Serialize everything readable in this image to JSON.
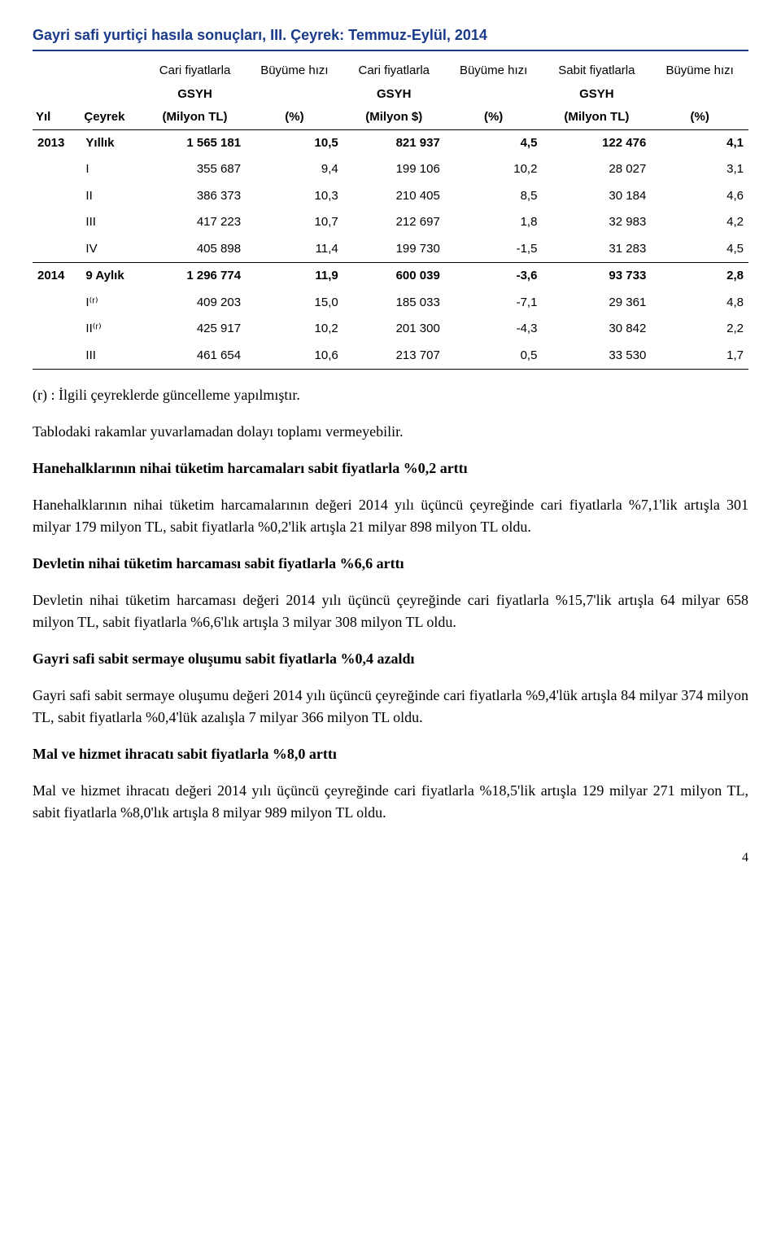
{
  "table": {
    "title": "Gayri safi yurtiçi hasıla sonuçları, III. Çeyrek: Temmuz-Eylül, 2014",
    "header": {
      "group1": "Cari fiyatlarla",
      "group2": "Büyüme hızı",
      "group3": "Cari fiyatlarla",
      "group4": "Büyüme hızı",
      "group5": "Sabit fiyatlarla",
      "group6": "Büyüme hızı",
      "gsyh": "GSYH",
      "yil": "Yıl",
      "ceyrek": "Çeyrek",
      "milyon_tl": "(Milyon TL)",
      "pct": "(%)",
      "milyon_usd": "(Milyon $)"
    },
    "rows": [
      {
        "yil": "2013",
        "ceyrek": "Yıllık",
        "c1": "1 565 181",
        "c2": "10,5",
        "c3": "821 937",
        "c4": "4,5",
        "c5": "122 476",
        "c6": "4,1",
        "bold": true
      },
      {
        "yil": "",
        "ceyrek": "I",
        "c1": "355 687",
        "c2": "9,4",
        "c3": "199 106",
        "c4": "10,2",
        "c5": "28 027",
        "c6": "3,1"
      },
      {
        "yil": "",
        "ceyrek": "II",
        "c1": "386 373",
        "c2": "10,3",
        "c3": "210 405",
        "c4": "8,5",
        "c5": "30 184",
        "c6": "4,6"
      },
      {
        "yil": "",
        "ceyrek": "III",
        "c1": "417 223",
        "c2": "10,7",
        "c3": "212 697",
        "c4": "1,8",
        "c5": "32 983",
        "c6": "4,2"
      },
      {
        "yil": "",
        "ceyrek": "IV",
        "c1": "405 898",
        "c2": "11,4",
        "c3": "199 730",
        "c4": "-1,5",
        "c5": "31 283",
        "c6": "4,5"
      },
      {
        "yil": "2014",
        "ceyrek": "9 Aylık",
        "c1": "1 296 774",
        "c2": "11,9",
        "c3": "600 039",
        "c4": "-3,6",
        "c5": "93 733",
        "c6": "2,8",
        "bold": true,
        "mid": true
      },
      {
        "yil": "",
        "ceyrek": "I⁽ʳ⁾",
        "c1": "409 203",
        "c2": "15,0",
        "c3": "185 033",
        "c4": "-7,1",
        "c5": "29 361",
        "c6": "4,8"
      },
      {
        "yil": "",
        "ceyrek": "II⁽ʳ⁾",
        "c1": "425 917",
        "c2": "10,2",
        "c3": "201 300",
        "c4": "-4,3",
        "c5": "30 842",
        "c6": "2,2"
      },
      {
        "yil": "",
        "ceyrek": "III",
        "c1": "461 654",
        "c2": "10,6",
        "c3": "213 707",
        "c4": "0,5",
        "c5": "33 530",
        "c6": "1,7"
      }
    ]
  },
  "body": {
    "note1": "(r) : İlgili çeyreklerde güncelleme yapılmıştır.",
    "note2": "Tablodaki rakamlar yuvarlamadan dolayı toplamı vermeyebilir.",
    "h1": "Hanehalklarının nihai tüketim harcamaları sabit fiyatlarla %0,2 arttı",
    "p1": "Hanehalklarının nihai tüketim harcamalarının değeri 2014 yılı üçüncü çeyreğinde cari fiyatlarla %7,1'lik artışla 301 milyar 179 milyon TL, sabit fiyatlarla %0,2'lik artışla 21 milyar 898 milyon TL oldu.",
    "h2": "Devletin nihai tüketim harcaması sabit fiyatlarla %6,6 arttı",
    "p2": "Devletin nihai tüketim harcaması değeri 2014 yılı üçüncü çeyreğinde cari fiyatlarla %15,7'lik artışla 64 milyar 658 milyon TL, sabit fiyatlarla %6,6'lık artışla 3 milyar 308 milyon TL oldu.",
    "h3": "Gayri safi sabit sermaye oluşumu sabit fiyatlarla %0,4 azaldı",
    "p3": "Gayri safi sabit sermaye oluşumu değeri 2014 yılı üçüncü çeyreğinde cari fiyatlarla %9,4'lük artışla 84 milyar 374 milyon TL, sabit fiyatlarla %0,4'lük azalışla 7 milyar 366 milyon TL oldu.",
    "h4": "Mal ve hizmet ihracatı sabit fiyatlarla %8,0 arttı",
    "p4": "Mal ve hizmet ihracatı değeri 2014 yılı üçüncü çeyreğinde cari fiyatlarla %18,5'lik artışla 129 milyar 271 milyon TL, sabit fiyatlarla %8,0'lık artışla 8 milyar 989 milyon TL oldu."
  },
  "page": "4"
}
